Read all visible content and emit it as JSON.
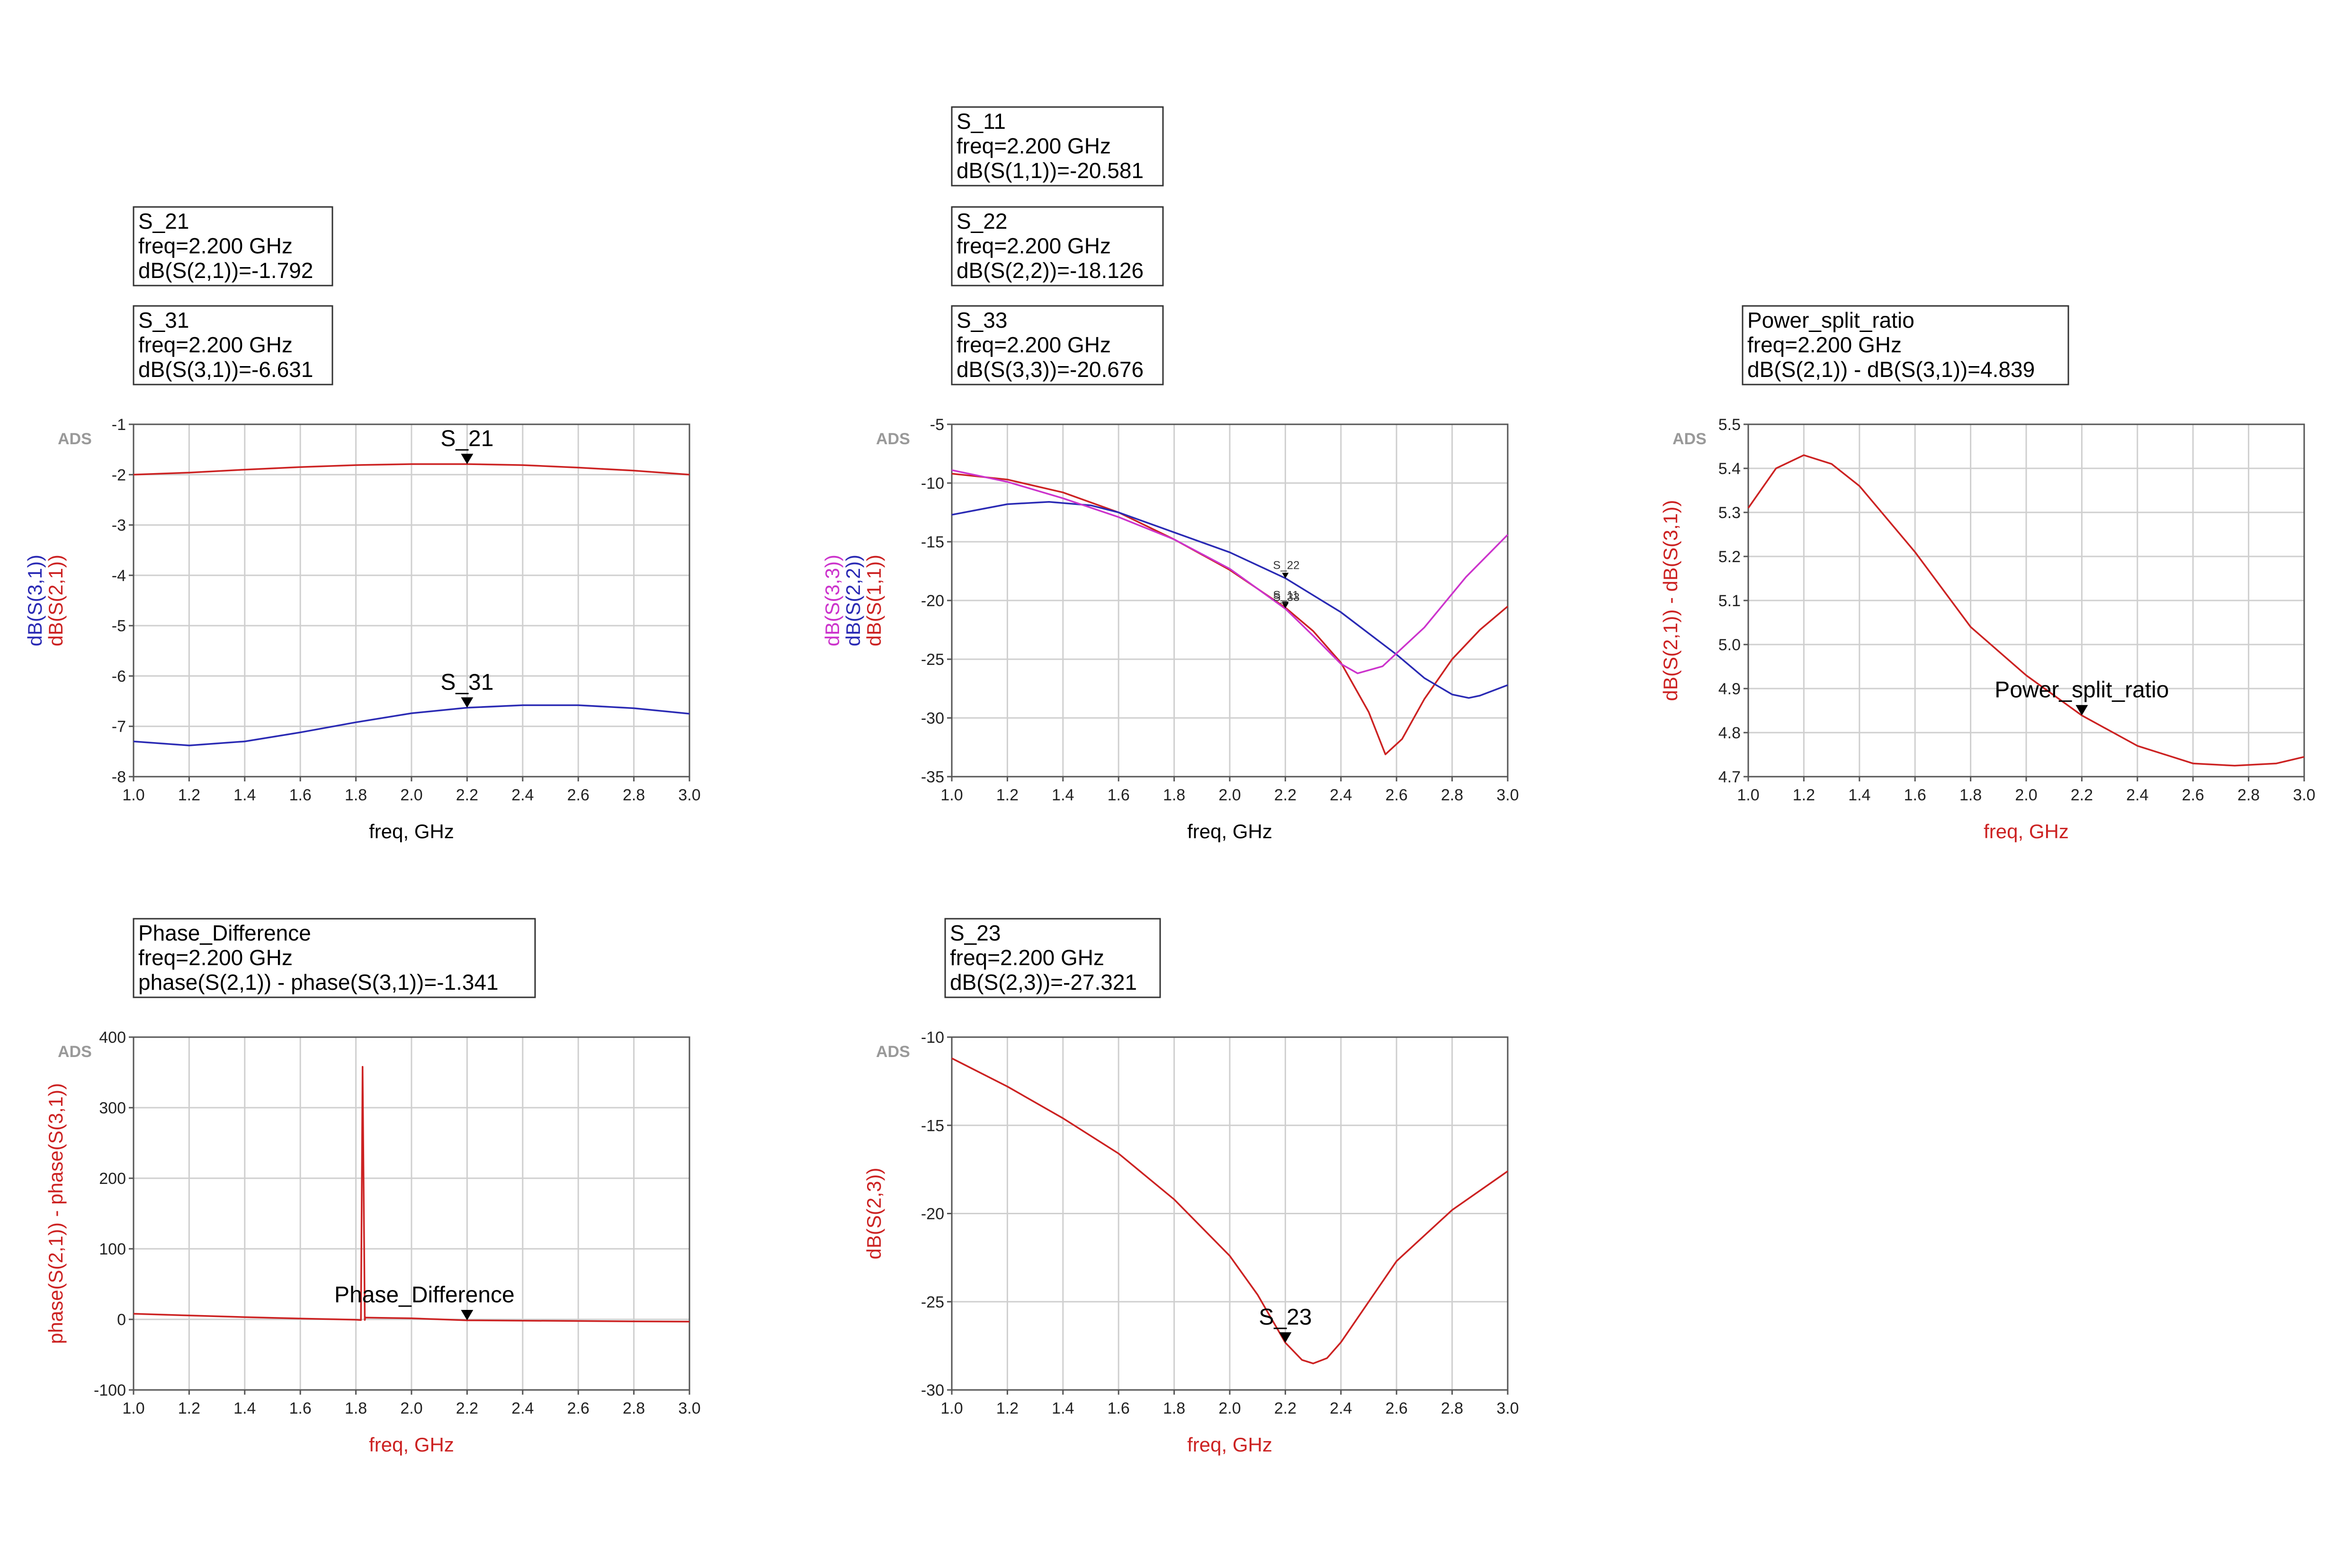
{
  "chart_data": [
    {
      "id": "p1",
      "type": "line",
      "xlabel": "freq, GHz",
      "ylabel_parts": [
        {
          "text": "dB(S(3,1))",
          "color": "#2a2ab4"
        },
        {
          "text": "dB(S(2,1))",
          "color": "#cc2222"
        }
      ],
      "xlabel_color": "#000000",
      "corner": "ADS",
      "xlim": [
        1.0,
        3.0
      ],
      "ylim": [
        -8,
        -1
      ],
      "xticks": [
        1.0,
        1.2,
        1.4,
        1.6,
        1.8,
        2.0,
        2.2,
        2.4,
        2.6,
        2.8,
        3.0
      ],
      "yticks": [
        -8,
        -7,
        -6,
        -5,
        -4,
        -3,
        -2,
        -1
      ],
      "ytick_decimals": 0,
      "series": [
        {
          "id": "dB(S(2,1))",
          "color": "#cc2222",
          "x": [
            1.0,
            1.2,
            1.4,
            1.6,
            1.8,
            2.0,
            2.2,
            2.4,
            2.6,
            2.8,
            3.0
          ],
          "y": [
            -2.0,
            -1.96,
            -1.9,
            -1.85,
            -1.81,
            -1.79,
            -1.79,
            -1.81,
            -1.86,
            -1.92,
            -2.0
          ]
        },
        {
          "id": "dB(S(3,1))",
          "color": "#2a2ab4",
          "x": [
            1.0,
            1.2,
            1.4,
            1.6,
            1.8,
            2.0,
            2.2,
            2.4,
            2.6,
            2.8,
            3.0
          ],
          "y": [
            -7.3,
            -7.38,
            -7.3,
            -7.12,
            -6.92,
            -6.74,
            -6.63,
            -6.58,
            -6.58,
            -6.64,
            -6.75
          ]
        }
      ],
      "markers": [
        {
          "name": "S_21",
          "x": 2.2,
          "y": -1.792,
          "size": "large",
          "pos": "above"
        },
        {
          "name": "S_31",
          "x": 2.2,
          "y": -6.631,
          "size": "large",
          "pos": "above"
        }
      ],
      "readouts": [
        {
          "lines": [
            "S_21",
            "freq=2.200 GHz",
            "dB(S(2,1))=-1.792"
          ]
        },
        {
          "lines": [
            "S_31",
            "freq=2.200 GHz",
            "dB(S(3,1))=-6.631"
          ]
        }
      ]
    },
    {
      "id": "p2",
      "type": "line",
      "xlabel": "freq, GHz",
      "ylabel_parts": [
        {
          "text": "dB(S(3,3))",
          "color": "#cc33cc"
        },
        {
          "text": "dB(S(2,2))",
          "color": "#2a2ab4"
        },
        {
          "text": "dB(S(1,1))",
          "color": "#cc2222"
        }
      ],
      "xlabel_color": "#000000",
      "corner": "ADS",
      "xlim": [
        1.0,
        3.0
      ],
      "ylim": [
        -35,
        -5
      ],
      "xticks": [
        1.0,
        1.2,
        1.4,
        1.6,
        1.8,
        2.0,
        2.2,
        2.4,
        2.6,
        2.8,
        3.0
      ],
      "yticks": [
        -35,
        -30,
        -25,
        -20,
        -15,
        -10,
        -5
      ],
      "ytick_decimals": 0,
      "series": [
        {
          "id": "dB(S(1,1))",
          "color": "#cc2222",
          "x": [
            1.0,
            1.2,
            1.4,
            1.6,
            1.8,
            2.0,
            2.2,
            2.3,
            2.4,
            2.5,
            2.56,
            2.62,
            2.7,
            2.8,
            2.9,
            3.0
          ],
          "y": [
            -9.2,
            -9.7,
            -10.8,
            -12.5,
            -14.8,
            -17.4,
            -20.6,
            -22.6,
            -25.3,
            -29.5,
            -33.1,
            -31.8,
            -28.4,
            -25.0,
            -22.5,
            -20.5
          ]
        },
        {
          "id": "dB(S(2,2))",
          "color": "#2a2ab4",
          "x": [
            1.0,
            1.2,
            1.35,
            1.5,
            1.6,
            1.8,
            2.0,
            2.2,
            2.4,
            2.6,
            2.7,
            2.8,
            2.86,
            2.9,
            3.0
          ],
          "y": [
            -12.7,
            -11.8,
            -11.6,
            -11.9,
            -12.5,
            -14.2,
            -15.9,
            -18.1,
            -21.0,
            -24.6,
            -26.6,
            -28.0,
            -28.3,
            -28.1,
            -27.2
          ]
        },
        {
          "id": "dB(S(3,3))",
          "color": "#cc33cc",
          "x": [
            1.0,
            1.2,
            1.4,
            1.6,
            1.8,
            2.0,
            2.2,
            2.3,
            2.4,
            2.46,
            2.55,
            2.7,
            2.85,
            3.0
          ],
          "y": [
            -8.9,
            -9.9,
            -11.3,
            -12.9,
            -14.8,
            -17.3,
            -20.7,
            -23.0,
            -25.4,
            -26.2,
            -25.6,
            -22.3,
            -18.0,
            -14.4
          ]
        }
      ],
      "markers": [
        {
          "name": "S_22",
          "x": 2.2,
          "y": -18.126,
          "size": "small",
          "pos": "above"
        },
        {
          "name": "S_11",
          "x": 2.2,
          "y": -20.581,
          "size": "small",
          "pos": "above"
        },
        {
          "name": "S_33",
          "x": 2.2,
          "y": -20.676,
          "size": "small",
          "pos": "above"
        }
      ],
      "readouts": [
        {
          "lines": [
            "S_11",
            "freq=2.200 GHz",
            "dB(S(1,1))=-20.581"
          ]
        },
        {
          "lines": [
            "S_22",
            "freq=2.200 GHz",
            "dB(S(2,2))=-18.126"
          ]
        },
        {
          "lines": [
            "S_33",
            "freq=2.200 GHz",
            "dB(S(3,3))=-20.676"
          ]
        }
      ]
    },
    {
      "id": "p3",
      "type": "line",
      "xlabel": "freq, GHz",
      "ylabel_parts": [
        {
          "text": "dB(S(2,1)) - dB(S(3,1))",
          "color": "#cc2222"
        }
      ],
      "xlabel_color": "#cc2222",
      "corner": "ADS",
      "xlim": [
        1.0,
        3.0
      ],
      "ylim": [
        4.7,
        5.5
      ],
      "xticks": [
        1.0,
        1.2,
        1.4,
        1.6,
        1.8,
        2.0,
        2.2,
        2.4,
        2.6,
        2.8,
        3.0
      ],
      "yticks": [
        4.7,
        4.8,
        4.9,
        5.0,
        5.1,
        5.2,
        5.3,
        5.4,
        5.5
      ],
      "ytick_decimals": 1,
      "series": [
        {
          "id": "dB(S(2,1)) - dB(S(3,1))",
          "color": "#cc2222",
          "x": [
            1.0,
            1.1,
            1.2,
            1.3,
            1.4,
            1.6,
            1.8,
            2.0,
            2.2,
            2.4,
            2.6,
            2.75,
            2.9,
            3.0
          ],
          "y": [
            5.31,
            5.4,
            5.43,
            5.41,
            5.36,
            5.21,
            5.04,
            4.93,
            4.839,
            4.77,
            4.73,
            4.725,
            4.73,
            4.745
          ]
        }
      ],
      "markers": [
        {
          "name": "Power_split_ratio",
          "x": 2.2,
          "y": 4.839,
          "size": "large",
          "pos": "above"
        }
      ],
      "readouts": [
        {
          "lines": [
            "Power_split_ratio",
            "freq=2.200 GHz",
            "dB(S(2,1)) - dB(S(3,1))=4.839"
          ]
        }
      ]
    },
    {
      "id": "p4",
      "type": "line",
      "xlabel": "freq, GHz",
      "ylabel_parts": [
        {
          "text": "phase(S(2,1)) - phase(S(3,1))",
          "color": "#cc2222"
        }
      ],
      "xlabel_color": "#cc2222",
      "corner": "ADS",
      "xlim": [
        1.0,
        3.0
      ],
      "ylim": [
        -100,
        400
      ],
      "xticks": [
        1.0,
        1.2,
        1.4,
        1.6,
        1.8,
        2.0,
        2.2,
        2.4,
        2.6,
        2.8,
        3.0
      ],
      "yticks": [
        -100,
        0,
        100,
        200,
        300,
        400
      ],
      "ytick_decimals": 0,
      "series": [
        {
          "id": "phase(S(2,1)) - phase(S(3,1))",
          "color": "#cc2222",
          "x": [
            1.0,
            1.2,
            1.4,
            1.6,
            1.8,
            1.818,
            1.824,
            1.832,
            1.834,
            1.838,
            2.0,
            2.2,
            2.4,
            2.6,
            2.8,
            3.0
          ],
          "y": [
            8.0,
            5.5,
            3.2,
            1.2,
            -0.5,
            -1.0,
            358.0,
            -0.8,
            2.8,
            2.5,
            1.5,
            -1.341,
            -1.8,
            -2.3,
            -2.8,
            -3.2
          ]
        }
      ],
      "markers": [
        {
          "name": "Phase_Difference",
          "x": 2.2,
          "y": -1.341,
          "size": "large",
          "pos": "above-left"
        }
      ],
      "readouts": [
        {
          "lines": [
            "Phase_Difference",
            "freq=2.200 GHz",
            "phase(S(2,1)) - phase(S(3,1))=-1.341"
          ]
        }
      ]
    },
    {
      "id": "p5",
      "type": "line",
      "xlabel": "freq, GHz",
      "ylabel_parts": [
        {
          "text": "dB(S(2,3))",
          "color": "#cc2222"
        }
      ],
      "xlabel_color": "#cc2222",
      "corner": "ADS",
      "xlim": [
        1.0,
        3.0
      ],
      "ylim": [
        -30,
        -10
      ],
      "xticks": [
        1.0,
        1.2,
        1.4,
        1.6,
        1.8,
        2.0,
        2.2,
        2.4,
        2.6,
        2.8,
        3.0
      ],
      "yticks": [
        -30,
        -25,
        -20,
        -15,
        -10
      ],
      "ytick_decimals": 0,
      "series": [
        {
          "id": "dB(S(2,3))",
          "color": "#cc2222",
          "x": [
            1.0,
            1.2,
            1.4,
            1.6,
            1.8,
            2.0,
            2.1,
            2.2,
            2.26,
            2.3,
            2.35,
            2.4,
            2.5,
            2.6,
            2.8,
            3.0
          ],
          "y": [
            -11.2,
            -12.8,
            -14.6,
            -16.6,
            -19.2,
            -22.4,
            -24.6,
            -27.321,
            -28.3,
            -28.5,
            -28.2,
            -27.3,
            -25.0,
            -22.7,
            -19.8,
            -17.6
          ]
        }
      ],
      "markers": [
        {
          "name": "S_23",
          "x": 2.2,
          "y": -27.321,
          "size": "large",
          "pos": "above"
        }
      ],
      "readouts": [
        {
          "lines": [
            "S_23",
            "freq=2.200 GHz",
            "dB(S(2,3))=-27.321"
          ]
        }
      ]
    }
  ]
}
